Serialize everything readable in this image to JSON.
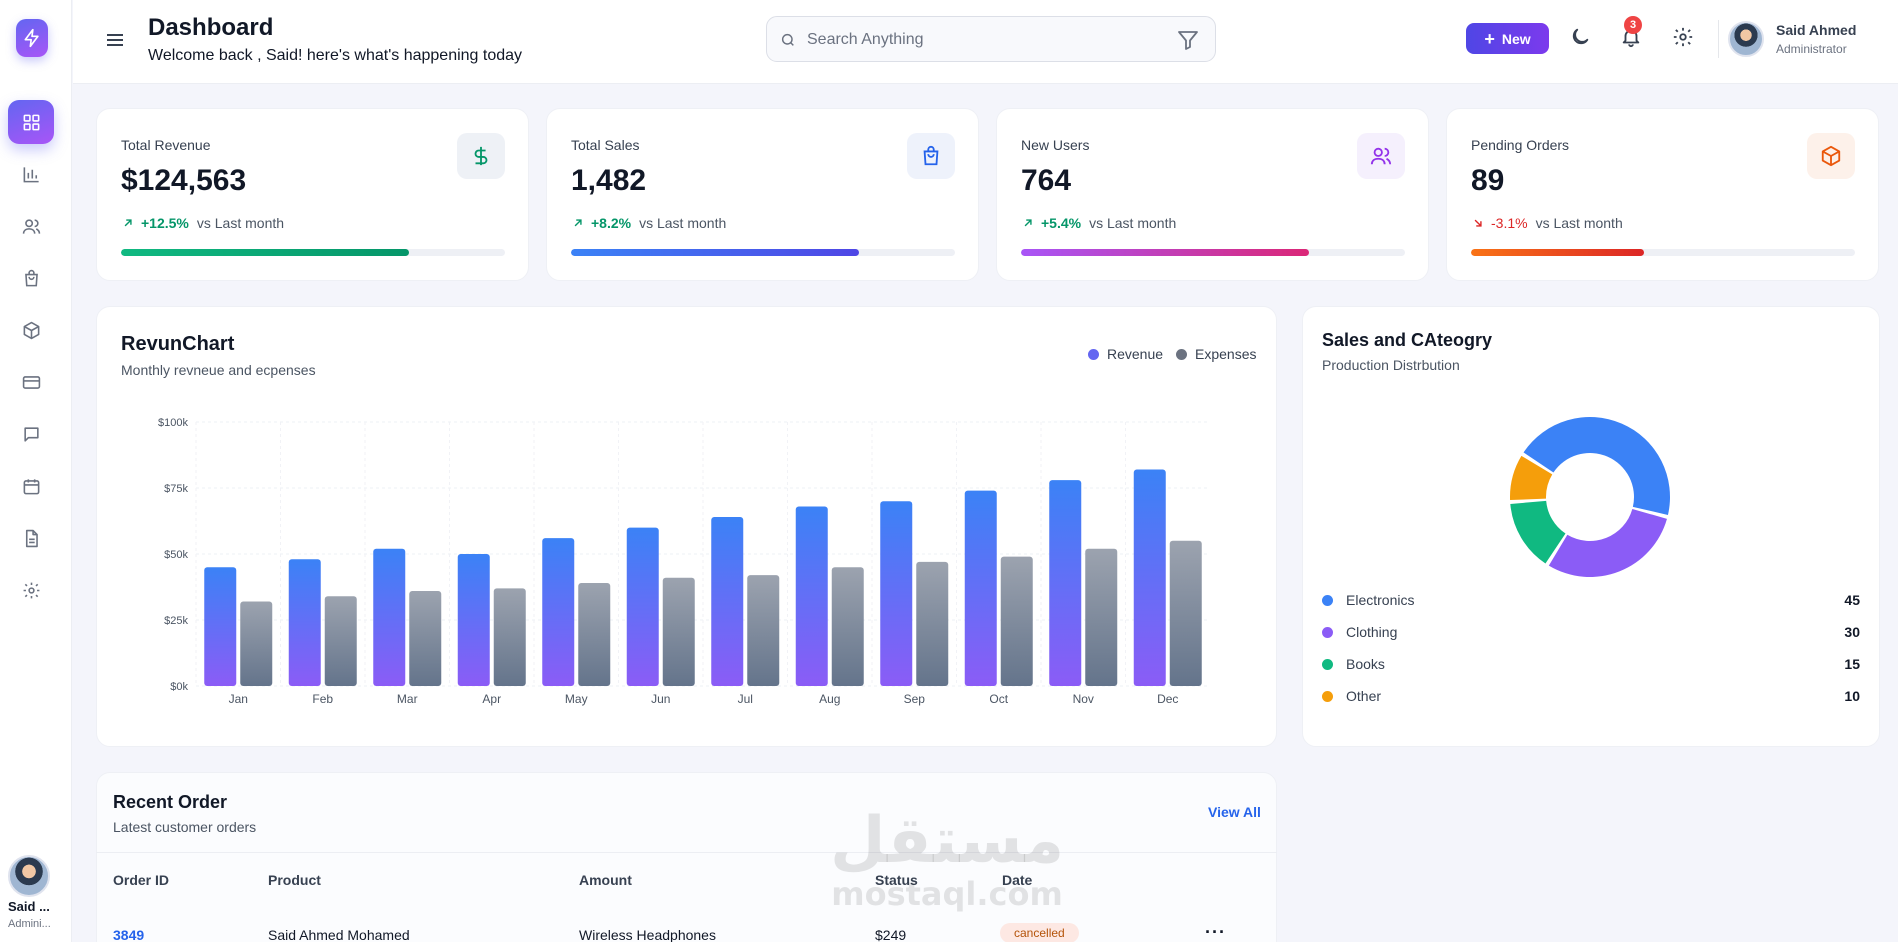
{
  "header": {
    "title": "Dashboard",
    "subtitle": "Welcome back , Said! here's what's happening today",
    "search_placeholder": "Search Anything",
    "new_label": "New",
    "notifications_count": "3",
    "user_name": "Said Ahmed",
    "user_role": "Administrator"
  },
  "sidebar": {
    "items": [
      "dashboard",
      "analytics",
      "users",
      "orders",
      "products",
      "payments",
      "messages",
      "calendar",
      "reports",
      "settings"
    ],
    "active": "dashboard",
    "user_name": "Said ...",
    "user_role": "Admini..."
  },
  "stats": [
    {
      "label": "Total Revenue",
      "value": "$124,563",
      "change": "+12.5%",
      "compare": "vs Last month",
      "trend": "up",
      "progress": 0.75,
      "icon": "dollar-icon",
      "color": "#10b981"
    },
    {
      "label": "Total Sales",
      "value": "1,482",
      "change": "+8.2%",
      "compare": "vs Last month",
      "trend": "up",
      "progress": 0.75,
      "icon": "shopping-bag-icon",
      "color": "#3b82f6"
    },
    {
      "label": "New Users",
      "value": "764",
      "change": "+5.4%",
      "compare": "vs Last month",
      "trend": "up",
      "progress": 0.75,
      "icon": "users-icon",
      "color": "#a855f7"
    },
    {
      "label": "Pending Orders",
      "value": "89",
      "change": "-3.1%",
      "compare": "vs Last month",
      "trend": "down",
      "progress": 0.45,
      "icon": "package-icon",
      "color": "#f97316"
    }
  ],
  "revenue": {
    "title": "RevunChart",
    "subtitle": "Monthly revneue and ecpenses",
    "legend": [
      "Revenue",
      "Expenses"
    ]
  },
  "category": {
    "title": "Sales and CAteogry",
    "subtitle": "Production Distrbution",
    "items": [
      {
        "name": "Electronics",
        "value": "45",
        "color": "#3b82f6"
      },
      {
        "name": "Clothing",
        "value": "30",
        "color": "#8b5cf6"
      },
      {
        "name": "Books",
        "value": "15",
        "color": "#10b981"
      },
      {
        "name": "Other",
        "value": "10",
        "color": "#f59e0b"
      }
    ]
  },
  "orders": {
    "title": "Recent Order",
    "subtitle": "Latest customer orders",
    "view_all": "View All",
    "columns": [
      "Order ID",
      "Product",
      "Amount",
      "Status",
      "Date"
    ],
    "rows": [
      {
        "id": "3849",
        "customer": "Said Ahmed Mohamed",
        "product": "Wireless Headphones",
        "amount": "$249",
        "status": "cancelled"
      }
    ]
  },
  "watermark": {
    "arabic": "مستقل",
    "latin": "mostaql.com"
  },
  "chart_data": [
    {
      "type": "bar",
      "title": "RevunChart",
      "categories": [
        "Jan",
        "Feb",
        "Mar",
        "Apr",
        "May",
        "Jun",
        "Jul",
        "Aug",
        "Sep",
        "Oct",
        "Nov",
        "Dec"
      ],
      "series": [
        {
          "name": "Revenue",
          "values": [
            45,
            48,
            52,
            50,
            56,
            60,
            64,
            68,
            70,
            74,
            78,
            82
          ]
        },
        {
          "name": "Expenses",
          "values": [
            32,
            34,
            36,
            37,
            39,
            41,
            42,
            45,
            47,
            49,
            52,
            55
          ]
        }
      ],
      "ylim": [
        0,
        100
      ],
      "yticks": [
        "$0k",
        "$25k",
        "$50k",
        "$75k",
        "$100k"
      ],
      "grid": true,
      "legend": "top-right"
    },
    {
      "type": "pie",
      "title": "Sales and CAteogry",
      "labels": [
        "Electronics",
        "Clothing",
        "Books",
        "Other"
      ],
      "values": [
        45,
        30,
        15,
        10
      ]
    }
  ]
}
